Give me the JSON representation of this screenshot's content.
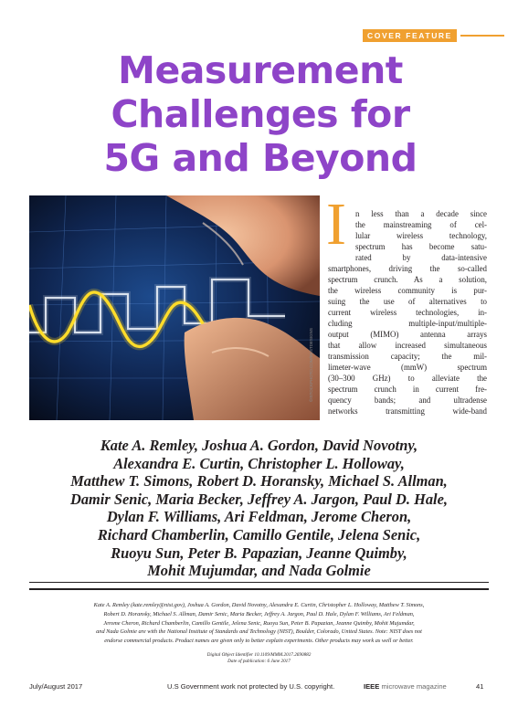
{
  "section_label": "COVER FEATURE",
  "title_lines": [
    "Measurement",
    "Challenges for",
    "5G and Beyond"
  ],
  "photo_credit": "©ISTOCKPHOTO.COM/BESTDESIGNS",
  "drop_cap": "I",
  "body_lines": [
    "n less than a decade since",
    "the mainstreaming of cel-",
    "lular wireless technology,",
    "spectrum has become satu-",
    "rated by data-intensive",
    "smartphones, driving the so-called",
    "spectrum crunch. As a solution,",
    "the wireless community is pur-",
    "suing the use of alternatives to",
    "current wireless technologies, in-",
    "cluding multiple-input/multiple-",
    "output (MIMO) antenna arrays",
    "that allow increased simultaneous",
    "transmission capacity; the mil-",
    "limeter-wave (mmW) spectrum",
    "(30–300 GHz) to alleviate the",
    "spectrum crunch in current fre-",
    "quency bands; and ultradense",
    "networks transmitting wide-band"
  ],
  "author_lines": [
    "Kate A. Remley, Joshua A. Gordon, David Novotny,",
    "Alexandra E. Curtin, Christopher L. Holloway,",
    "Matthew T. Simons, Robert D. Horansky, Michael S. Allman,",
    "Damir Senic, Maria Becker, Jeffrey A. Jargon, Paul D. Hale,",
    "Dylan F. Williams, Ari Feldman, Jerome Cheron,",
    "Richard Chamberlin, Camillo Gentile, Jelena Senic,",
    "Ruoyu Sun, Peter B. Papazian, Jeanne Quimby,",
    "Mohit Mujumdar, and Nada Golmie"
  ],
  "affiliation_lines": [
    "Kate A. Remley (kate.remley@nist.gov), Joshua A. Gordon, David Novotny, Alexandra E. Curtin, Christopher L. Holloway, Matthew T. Simons,",
    "Robert D. Horansky, Michael S. Allman, Damir Senic, Maria Becker, Jeffrey A. Jargon, Paul D. Hale, Dylan F. Williams, Ari Feldman,",
    "Jerome Cheron, Richard Chamberlin, Camillo Gentile, Jelena Senic, Ruoyu Sun, Peter B. Papazian, Jeanne Quimby, Mohit Mujumdar,",
    "and Nada Golmie are with the National Institute of Standards and Technology (NIST), Boulder, Colorado, United States. Note: NIST does not",
    "endorse commercial products. Product names are given only to better explain experiments. Other products may work as well or better."
  ],
  "doi_lines": [
    "Digital Object Identifier 10.1109/MMM.2017.2690882",
    "Date of publication: 6 June 2017"
  ],
  "footer": {
    "date": "July/August 2017",
    "copyright": "U.S Government work not protected by U.S. copyright.",
    "publisher": "IEEE",
    "magazine": "microwave magazine",
    "page": "41"
  },
  "colors": {
    "title": "#8e44c8",
    "accent": "#f0a030",
    "text": "#231f20"
  }
}
